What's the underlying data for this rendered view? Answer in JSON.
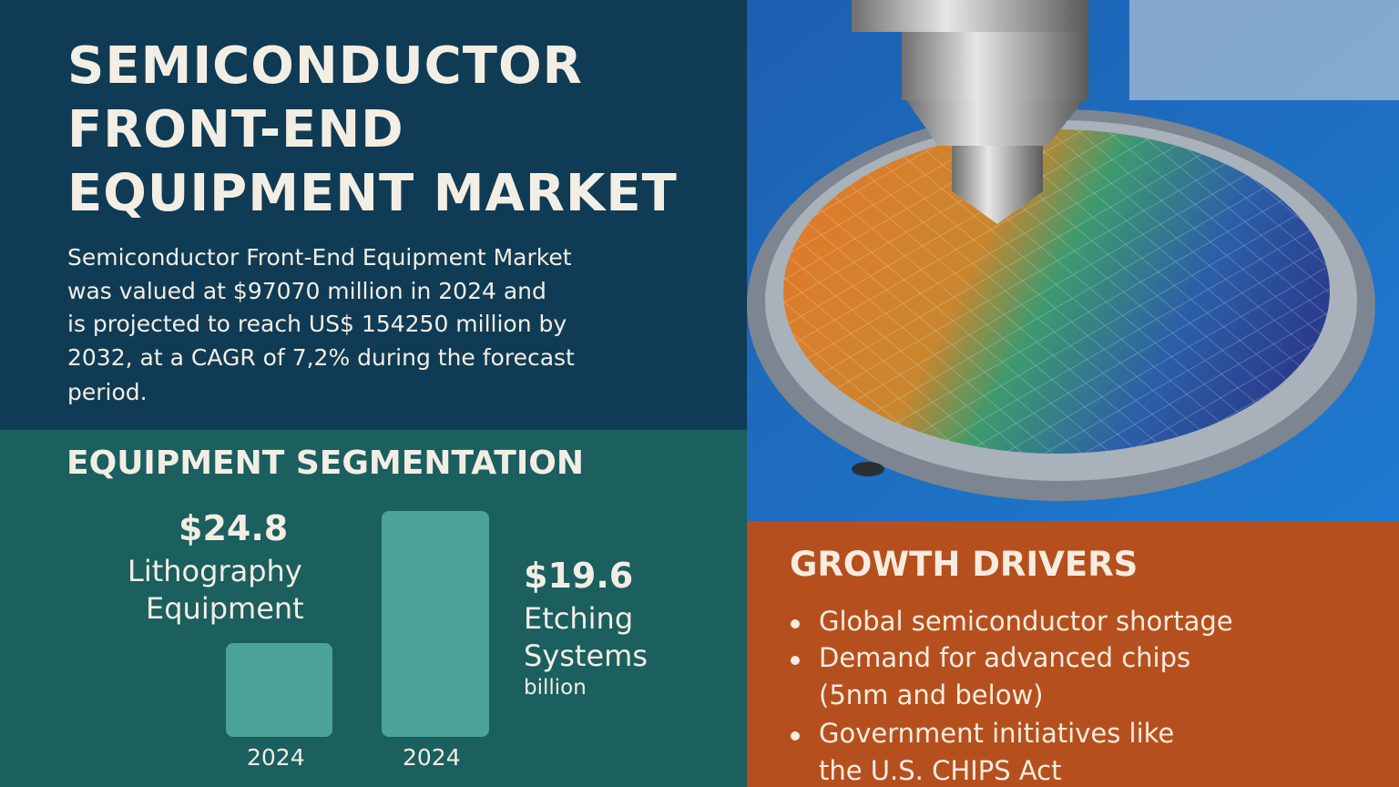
{
  "header": {
    "title_lines": [
      "SEMICONDUCTOR",
      "FRONT-END",
      "EQUIPMENT MARKET"
    ],
    "description_lines": [
      "Semiconductor Front-End Equipment Market",
      "was valued at $97070 million in 2024 and",
      "is projected to reach US$ 154250 million by",
      "2032, at a CAGR of 7,2% during the forecast",
      "period."
    ]
  },
  "segmentation": {
    "title": "EQUIPMENT SEGMENTATION",
    "items": [
      {
        "value": "$24.8",
        "label_lines": [
          "Lithography",
          "Equipment"
        ],
        "year": "2024"
      },
      {
        "value": "$19.6",
        "label_lines": [
          "Etching",
          "Systems"
        ],
        "unit": "billion",
        "year": "2024"
      }
    ]
  },
  "growth_drivers": {
    "title": "GROWTH DRIVERS",
    "items": [
      {
        "lines": [
          "Global semiconductor shortage"
        ]
      },
      {
        "lines": [
          "Demand for advanced chips",
          "(5nm and below)"
        ]
      },
      {
        "lines": [
          "Government initiatives like",
          "the U.S. CHIPS Act"
        ]
      }
    ]
  }
}
